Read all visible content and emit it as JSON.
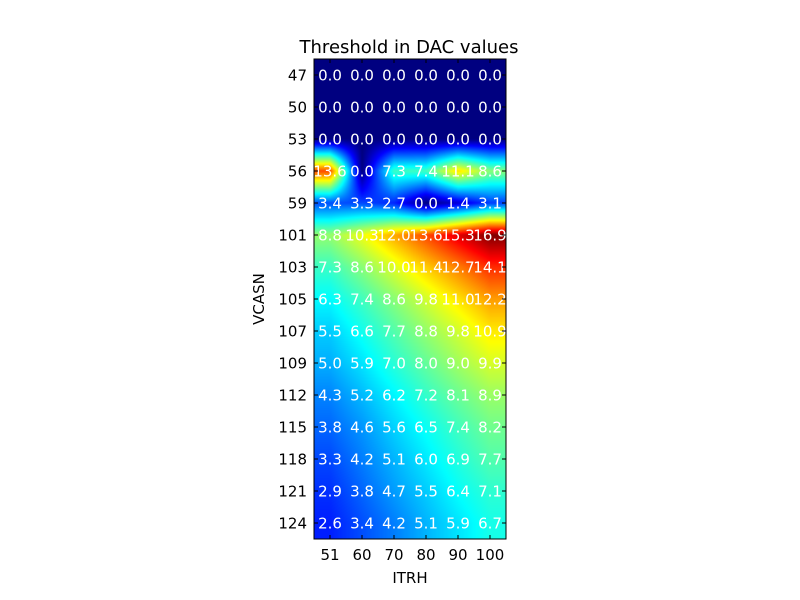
{
  "chart_data": {
    "type": "heatmap",
    "title": "Threshold in DAC values",
    "xlabel": "ITRH",
    "ylabel": "VCASN",
    "x": [
      "51",
      "60",
      "70",
      "80",
      "90",
      "100"
    ],
    "y": [
      "47",
      "50",
      "53",
      "56",
      "59",
      "101",
      "103",
      "105",
      "107",
      "109",
      "112",
      "115",
      "118",
      "121",
      "124"
    ],
    "values": [
      [
        0.0,
        0.0,
        0.0,
        0.0,
        0.0,
        0.0
      ],
      [
        0.0,
        0.0,
        0.0,
        0.0,
        0.0,
        0.0
      ],
      [
        0.0,
        0.0,
        0.0,
        0.0,
        0.0,
        0.0
      ],
      [
        13.6,
        0.0,
        7.3,
        7.4,
        11.1,
        8.6
      ],
      [
        3.4,
        3.3,
        2.7,
        0.0,
        1.4,
        3.1
      ],
      [
        8.8,
        10.3,
        12.0,
        13.6,
        15.3,
        16.9
      ],
      [
        7.3,
        8.6,
        10.0,
        11.4,
        12.7,
        14.1
      ],
      [
        6.3,
        7.4,
        8.6,
        9.8,
        11.0,
        12.2
      ],
      [
        5.5,
        6.6,
        7.7,
        8.8,
        9.8,
        10.9
      ],
      [
        5.0,
        5.9,
        7.0,
        8.0,
        9.0,
        9.9
      ],
      [
        4.3,
        5.2,
        6.2,
        7.2,
        8.1,
        8.9
      ],
      [
        3.8,
        4.6,
        5.6,
        6.5,
        7.4,
        8.2
      ],
      [
        3.3,
        4.2,
        5.1,
        6.0,
        6.9,
        7.7
      ],
      [
        2.9,
        3.8,
        4.7,
        5.5,
        6.4,
        7.1
      ],
      [
        2.6,
        3.4,
        4.2,
        5.1,
        5.9,
        6.7
      ]
    ],
    "value_labels": [
      [
        "0.0",
        "0.0",
        "0.0",
        "0.0",
        "0.0",
        "0.0"
      ],
      [
        "0.0",
        "0.0",
        "0.0",
        "0.0",
        "0.0",
        "0.0"
      ],
      [
        "0.0",
        "0.0",
        "0.0",
        "0.0",
        "0.0",
        "0.0"
      ],
      [
        "13.6",
        "0.0",
        "7.3",
        "7.4",
        "11.1",
        "8.6"
      ],
      [
        "3.4",
        "3.3",
        "2.7",
        "0.0",
        "1.4",
        "3.1"
      ],
      [
        "8.8",
        "10.3",
        "12.0",
        "13.6",
        "15.3",
        "16.9"
      ],
      [
        "7.3",
        "8.6",
        "10.0",
        "11.4",
        "12.7",
        "14.1"
      ],
      [
        "6.3",
        "7.4",
        "8.6",
        "9.8",
        "11.0",
        "12.2"
      ],
      [
        "5.5",
        "6.6",
        "7.7",
        "8.8",
        "9.8",
        "10.9"
      ],
      [
        "5.0",
        "5.9",
        "7.0",
        "8.0",
        "9.0",
        "9.9"
      ],
      [
        "4.3",
        "5.2",
        "6.2",
        "7.2",
        "8.1",
        "8.9"
      ],
      [
        "3.8",
        "4.6",
        "5.6",
        "6.5",
        "7.4",
        "8.2"
      ],
      [
        "3.3",
        "4.2",
        "5.1",
        "6.0",
        "6.9",
        "7.7"
      ],
      [
        "2.9",
        "3.8",
        "4.7",
        "5.5",
        "6.4",
        "7.1"
      ],
      [
        "2.6",
        "3.4",
        "4.2",
        "5.1",
        "5.9",
        "6.7"
      ]
    ],
    "colormap": "jet",
    "vmin": 0,
    "vmax": 16.9,
    "interpolation": "bilinear",
    "grid": false,
    "legend": "none"
  }
}
